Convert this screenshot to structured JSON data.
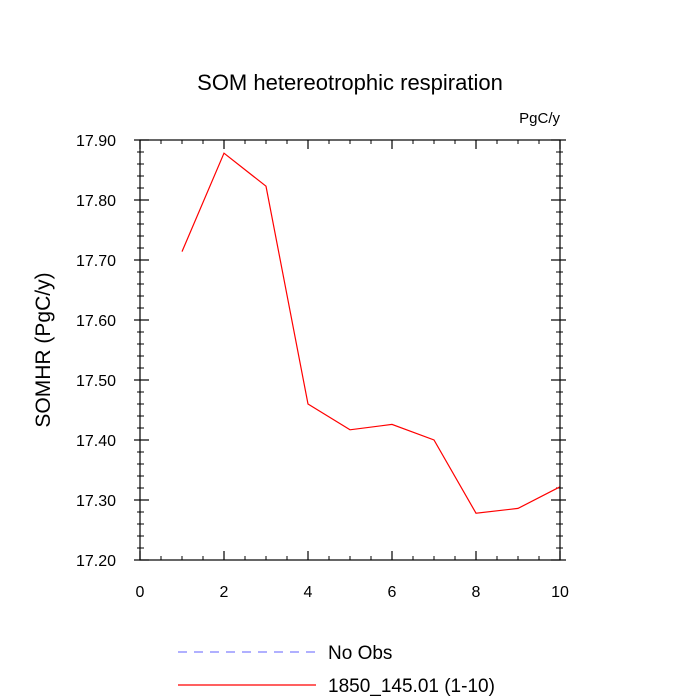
{
  "chart_data": {
    "type": "line",
    "title": "SOM hetereotrophic respiration",
    "units_label": "PgC/y",
    "ylabel": "SOMHR  (PgC/y)",
    "xlabel": "",
    "xlim": [
      0,
      10
    ],
    "ylim": [
      17.2,
      17.9
    ],
    "x_ticks": [
      0,
      2,
      4,
      6,
      8,
      10
    ],
    "x_tick_labels": [
      "0",
      "2",
      "4",
      "6",
      "8",
      "10"
    ],
    "y_ticks": [
      17.2,
      17.3,
      17.4,
      17.5,
      17.6,
      17.7,
      17.8,
      17.9
    ],
    "y_tick_labels": [
      "17.20",
      "17.30",
      "17.40",
      "17.50",
      "17.60",
      "17.70",
      "17.80",
      "17.90"
    ],
    "grid": false,
    "legend_position": "bottom",
    "series": [
      {
        "name": "1850_145.01 (1-10)",
        "color": "#ff0000",
        "style": "solid",
        "x": [
          1,
          2,
          3,
          4,
          5,
          6,
          7,
          8,
          9,
          10
        ],
        "y": [
          17.714,
          17.878,
          17.823,
          17.46,
          17.417,
          17.426,
          17.4,
          17.278,
          17.286,
          17.322
        ]
      }
    ],
    "legend": [
      {
        "label": "No Obs",
        "color": "#8080ff",
        "style": "dashed"
      },
      {
        "label": "1850_145.01 (1-10)",
        "color": "#ff0000",
        "style": "solid"
      }
    ]
  }
}
